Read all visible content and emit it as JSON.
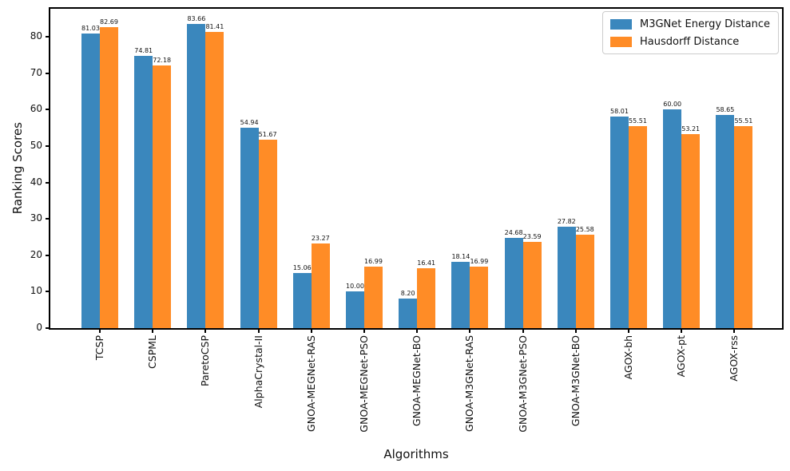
{
  "chart_data": {
    "type": "bar",
    "title": "",
    "xlabel": "Algorithms",
    "ylabel": "Ranking Scores",
    "categories": [
      "TCSP",
      "CSPML",
      "ParetoCSP",
      "AlphaCrystal-II",
      "GNOA-MEGNet-RAS",
      "GNOA-MEGNet-PSO",
      "GNOA-MEGNet-BO",
      "GNOA-M3GNet-RAS",
      "GNOA-M3GNet-PSO",
      "GNOA-M3GNet-BO",
      "AGOX-bh",
      "AGOX-pt",
      "AGOX-rss"
    ],
    "series": [
      {
        "name": "M3GNet Energy Distance",
        "color": "#3a87bd",
        "values": [
          81.03,
          74.81,
          83.66,
          54.94,
          15.06,
          10.0,
          8.2,
          18.14,
          24.68,
          27.82,
          58.01,
          60.0,
          58.65
        ],
        "labels": [
          "81.03",
          "74.81",
          "83.66",
          "54.94",
          "15.06",
          "10.00",
          "8.20",
          "18.14",
          "24.68",
          "27.82",
          "58.01",
          "60.00",
          "58.65"
        ]
      },
      {
        "name": "Hausdorff Distance",
        "color": "#ff8c26",
        "values": [
          82.69,
          72.18,
          81.41,
          51.67,
          23.27,
          16.99,
          16.41,
          16.99,
          23.59,
          25.58,
          55.51,
          53.21,
          55.51
        ],
        "labels": [
          "82.69",
          "72.18",
          "81.41",
          "51.67",
          "23.27",
          "16.99",
          "16.41",
          "16.99",
          "23.59",
          "25.58",
          "55.51",
          "53.21",
          "55.51"
        ]
      }
    ],
    "yticks": [
      "0",
      "10",
      "20",
      "30",
      "40",
      "50",
      "60",
      "70",
      "80"
    ],
    "ylim": [
      0,
      87.7
    ],
    "grid": false,
    "legend_position": "upper right"
  }
}
